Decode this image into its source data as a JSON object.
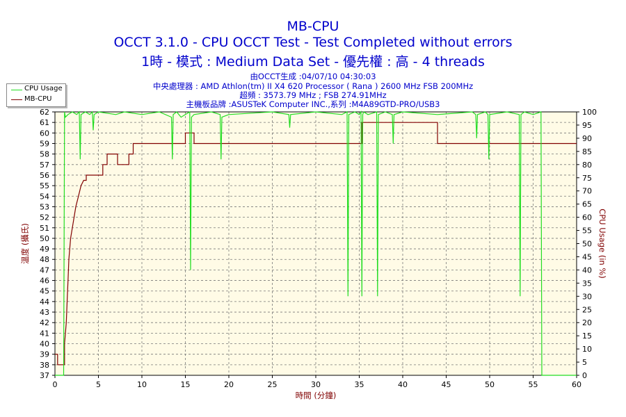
{
  "header": {
    "title": "MB-CPU",
    "subtitle1": "OCCT 3.1.0 - CPU OCCT Test - Test Completed without errors",
    "subtitle2": "1時 - 模式 : Medium Data Set - 優先權 : 高 - 4 threads",
    "info_generated": "由OCCT生成 :04/07/10 04:30:03",
    "info_cpu": "中央處理器 : AMD Athlon(tm) II X4 620 Processor ( Rana ) 2600 MHz FSB 200MHz",
    "info_freq": "超頻 : 3573.79 MHz ; FSB 274.91MHz",
    "info_board": "主機板品牌 :ASUSTeK Computer INC.,系列 :M4A89GTD-PRO/USB3"
  },
  "legend": [
    {
      "label": "CPU Usage",
      "color": "#22dd22"
    },
    {
      "label": "MB-CPU",
      "color": "#800000"
    }
  ],
  "chart_data": {
    "type": "line",
    "xlabel": "時間 (分鐘)",
    "ylabel": "溫度 (攝氏)",
    "y2label": "CPU Usage (in %)",
    "xlim": [
      0,
      60
    ],
    "ylim": [
      37,
      62
    ],
    "y2lim": [
      0,
      100
    ],
    "x_ticks": [
      0,
      5,
      10,
      15,
      20,
      25,
      30,
      35,
      40,
      45,
      50,
      55,
      60
    ],
    "y_ticks": [
      37,
      38,
      39,
      40,
      41,
      42,
      43,
      44,
      45,
      46,
      47,
      48,
      49,
      50,
      51,
      52,
      53,
      54,
      55,
      56,
      57,
      58,
      59,
      60,
      61,
      62
    ],
    "y2_ticks": [
      0,
      5,
      10,
      15,
      20,
      25,
      30,
      35,
      40,
      45,
      50,
      55,
      60,
      65,
      70,
      75,
      80,
      85,
      90,
      95,
      100
    ],
    "grid": true,
    "legend_position": "top-left",
    "series": [
      {
        "name": "MB-CPU",
        "axis": "left",
        "color": "#800000",
        "x": [
          0,
          0.3,
          0.3,
          1.1,
          1.1,
          1.3,
          1.4,
          1.5,
          1.6,
          1.8,
          2.0,
          2.2,
          2.4,
          2.7,
          3.0,
          3.3,
          3.6,
          3.6,
          5.5,
          5.5,
          6.0,
          6.0,
          6.4,
          6.4,
          7.2,
          7.2,
          8.5,
          8.5,
          9.0,
          9.0,
          15.0,
          15.0,
          16.0,
          16.0,
          35.3,
          35.3,
          44.0,
          44.0,
          60
        ],
        "y": [
          39,
          39,
          38,
          38,
          40,
          42,
          44,
          46,
          48,
          50,
          51,
          52,
          53,
          54,
          55,
          55.5,
          55.5,
          56,
          56,
          57,
          57,
          58,
          58,
          58,
          58,
          57,
          57,
          58,
          58,
          59,
          59,
          60,
          60,
          59,
          59,
          61,
          61,
          59,
          59
        ]
      },
      {
        "name": "CPU Usage",
        "axis": "right",
        "color": "#22dd22",
        "x": [
          0,
          0.3,
          0.6,
          0.8,
          0.9,
          1.0,
          1.1,
          1.2,
          1.5,
          2.0,
          2.5,
          2.8,
          2.9,
          3.0,
          3.5,
          4.0,
          4.3,
          4.4,
          4.5,
          5.0,
          7.0,
          8.0,
          10.0,
          12.0,
          13.4,
          13.5,
          13.6,
          14.0,
          14.5,
          15.0,
          15.5,
          15.6,
          15.7,
          16.0,
          18.0,
          19.0,
          19.1,
          19.2,
          20.0,
          25.0,
          26.9,
          27.0,
          27.1,
          30.0,
          33.0,
          33.6,
          33.7,
          33.8,
          34.5,
          35.0,
          35.2,
          35.3,
          35.4,
          35.5,
          36.0,
          37.0,
          37.1,
          37.2,
          38.0,
          38.8,
          38.9,
          39.0,
          40.0,
          44.0,
          48.0,
          48.4,
          48.5,
          48.6,
          49.5,
          49.8,
          49.9,
          50.0,
          52.0,
          53.4,
          53.5,
          53.6,
          54.0,
          55.0,
          55.9,
          56.0,
          56.1,
          60.0
        ],
        "y": [
          0,
          0,
          0,
          0,
          0,
          0,
          100,
          98,
          99,
          100,
          99,
          100,
          82,
          99,
          100,
          99,
          100,
          93,
          99,
          100,
          99,
          100,
          99,
          100,
          98,
          82,
          99,
          100,
          98,
          99,
          100,
          40,
          98,
          99,
          100,
          99,
          82,
          98,
          99,
          100,
          99,
          94,
          99,
          100,
          99,
          100,
          30,
          99,
          100,
          99,
          100,
          30,
          99,
          100,
          99,
          100,
          30,
          99,
          100,
          99,
          88,
          99,
          100,
          99,
          100,
          99,
          90,
          99,
          100,
          99,
          82,
          99,
          100,
          99,
          30,
          99,
          100,
          99,
          100,
          0,
          0,
          0
        ]
      }
    ]
  }
}
